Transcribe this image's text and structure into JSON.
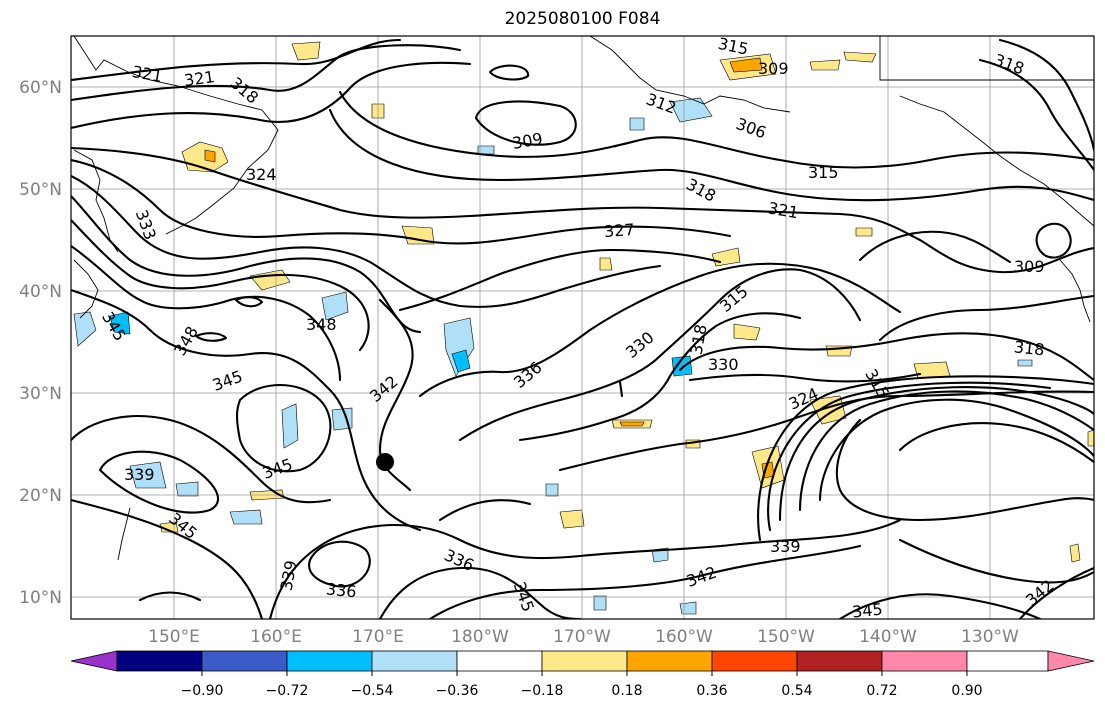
{
  "title": "2025080100 F084",
  "lat_labels": [
    "60°N",
    "50°N",
    "40°N",
    "30°N",
    "20°N",
    "10°N"
  ],
  "lon_labels": [
    "150°E",
    "160°E",
    "170°E",
    "180°W",
    "170°W",
    "160°W",
    "150°W",
    "140°W",
    "130°W"
  ],
  "contour_labels": [
    {
      "text": "321"
    },
    {
      "text": "321"
    },
    {
      "text": "318"
    },
    {
      "text": "315"
    },
    {
      "text": "309"
    },
    {
      "text": "312"
    },
    {
      "text": "306"
    },
    {
      "text": "309"
    },
    {
      "text": "318"
    },
    {
      "text": "324"
    },
    {
      "text": "315"
    },
    {
      "text": "318"
    },
    {
      "text": "321"
    },
    {
      "text": "327"
    },
    {
      "text": "333"
    },
    {
      "text": "309"
    },
    {
      "text": "315"
    },
    {
      "text": "348"
    },
    {
      "text": "345"
    },
    {
      "text": "348"
    },
    {
      "text": "345"
    },
    {
      "text": "342"
    },
    {
      "text": "336"
    },
    {
      "text": "330"
    },
    {
      "text": "318"
    },
    {
      "text": "330"
    },
    {
      "text": "318"
    },
    {
      "text": "324"
    },
    {
      "text": "315"
    },
    {
      "text": "345"
    },
    {
      "text": "339"
    },
    {
      "text": "345"
    },
    {
      "text": "339"
    },
    {
      "text": "336"
    },
    {
      "text": "336"
    },
    {
      "text": "342"
    },
    {
      "text": "339"
    },
    {
      "text": "342"
    },
    {
      "text": "345"
    },
    {
      "text": "345"
    }
  ],
  "colorbar": {
    "ticks": [
      "−0.90",
      "−0.72",
      "−0.54",
      "−0.36",
      "−0.18",
      "0.18",
      "0.36",
      "0.54",
      "0.72",
      "0.90"
    ],
    "colors": [
      "#9932cc",
      "#000080",
      "#3a5bc8",
      "#00bfff",
      "#b0e0f8",
      "#ffffff",
      "#ffe88a",
      "#ffa500",
      "#ff4500",
      "#b22222",
      "#ff88aa"
    ]
  },
  "marker": {
    "symbol": "storm-center"
  }
}
